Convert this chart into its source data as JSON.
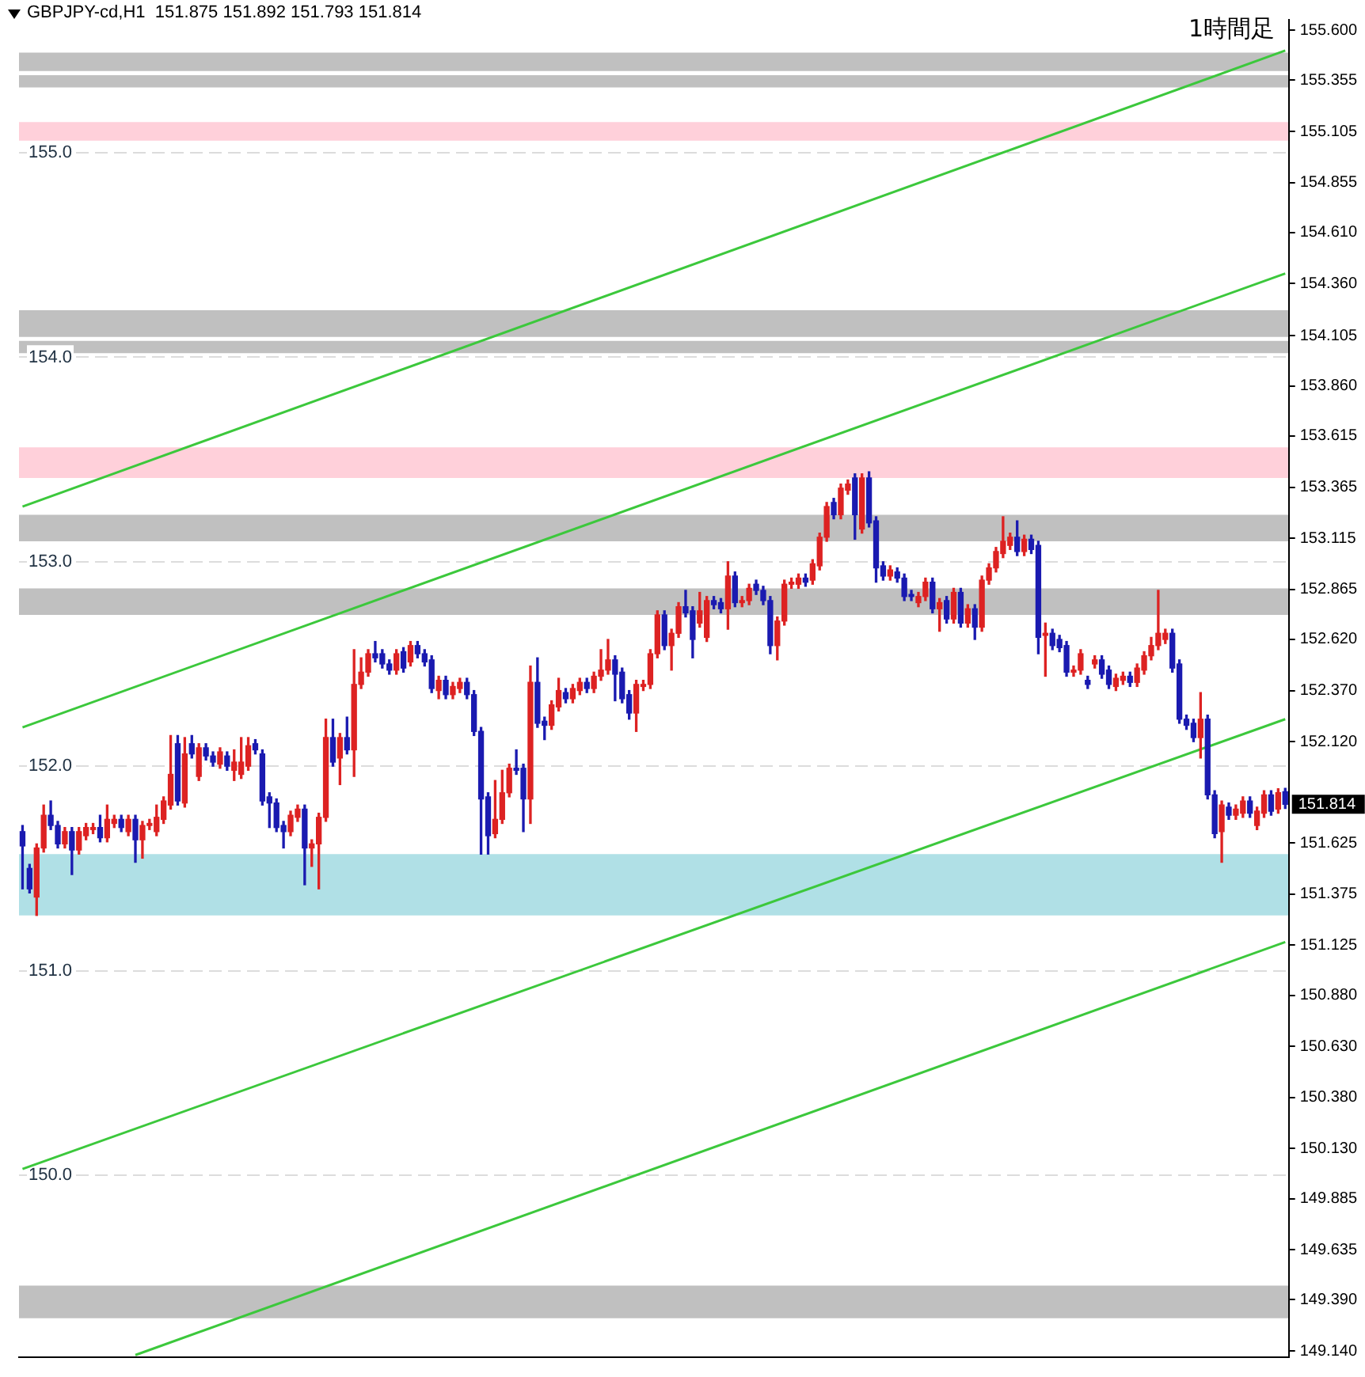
{
  "chart_data": {
    "type": "candlestick",
    "title": "GBPJPY-cd,H1  151.875 151.892 151.793 151.814",
    "subtitle": "1時間足",
    "categories": [
      null,
      null,
      null,
      null,
      null,
      null,
      null,
      null,
      null,
      null,
      null,
      null,
      null,
      null,
      null,
      null,
      null,
      null,
      null,
      null,
      null,
      null,
      null,
      null,
      null,
      null,
      null,
      null,
      null,
      null,
      null,
      null,
      null,
      null,
      null,
      null,
      null,
      null,
      null,
      null,
      null,
      null,
      null,
      null,
      null,
      null,
      null,
      null,
      null,
      null,
      null,
      null,
      null,
      null,
      null,
      null,
      null,
      null,
      null,
      null,
      null,
      null,
      null,
      null,
      null,
      null,
      null,
      null,
      null,
      null,
      null,
      null,
      null,
      null,
      null,
      null,
      null,
      null,
      null,
      null,
      null,
      null,
      null,
      null,
      null,
      null,
      null,
      null,
      null,
      null,
      null,
      null,
      null,
      null,
      null,
      null,
      null,
      null,
      null,
      null,
      null,
      null,
      null,
      null,
      null,
      null,
      null,
      null,
      null,
      null,
      null,
      null,
      null,
      null,
      null,
      null,
      null,
      null,
      null,
      null,
      null,
      null,
      null,
      null,
      null,
      null,
      null,
      null,
      null,
      null,
      null,
      null,
      null,
      null,
      null,
      null,
      null,
      null,
      null,
      null,
      null,
      null,
      null,
      null,
      null,
      null,
      null,
      null,
      null,
      null,
      null,
      null,
      null,
      null,
      null,
      null,
      null,
      null,
      null,
      null,
      null,
      null,
      null,
      null,
      null,
      null,
      null,
      null,
      null,
      null,
      null,
      null,
      null,
      null,
      null,
      null,
      null,
      null,
      null,
      null
    ],
    "ohlc": [
      [
        151.68,
        151.71,
        151.4,
        151.61
      ],
      [
        151.5,
        151.52,
        151.38,
        151.4
      ],
      [
        151.36,
        151.62,
        151.27,
        151.6
      ],
      [
        151.6,
        151.81,
        151.58,
        151.76
      ],
      [
        151.76,
        151.83,
        151.69,
        151.71
      ],
      [
        151.71,
        151.73,
        151.6,
        151.62
      ],
      [
        151.62,
        151.7,
        151.6,
        151.68
      ],
      [
        151.68,
        151.7,
        151.47,
        151.59
      ],
      [
        151.59,
        151.7,
        151.57,
        151.68
      ],
      [
        151.66,
        151.72,
        151.64,
        151.7
      ],
      [
        151.69,
        151.72,
        151.67,
        151.7
      ],
      [
        151.7,
        151.76,
        151.63,
        151.65
      ],
      [
        151.65,
        151.81,
        151.63,
        151.74
      ],
      [
        151.72,
        151.76,
        151.7,
        151.74
      ],
      [
        151.74,
        151.76,
        151.68,
        151.7
      ],
      [
        151.68,
        151.76,
        151.66,
        151.74
      ],
      [
        151.74,
        151.76,
        151.53,
        151.64
      ],
      [
        151.64,
        151.73,
        151.55,
        151.71
      ],
      [
        151.71,
        151.74,
        151.69,
        151.72
      ],
      [
        151.68,
        151.81,
        151.66,
        151.75
      ],
      [
        151.74,
        151.85,
        151.72,
        151.83
      ],
      [
        151.81,
        152.15,
        151.79,
        151.96
      ],
      [
        152.11,
        152.15,
        151.81,
        151.83
      ],
      [
        151.82,
        152.14,
        151.8,
        152.06
      ],
      [
        152.11,
        152.15,
        152.04,
        152.06
      ],
      [
        151.95,
        152.11,
        151.93,
        152.09
      ],
      [
        152.09,
        152.11,
        152.03,
        152.05
      ],
      [
        152.05,
        152.07,
        152.0,
        152.02
      ],
      [
        152.01,
        152.09,
        151.99,
        152.07
      ],
      [
        152.05,
        152.07,
        151.98,
        152.0
      ],
      [
        151.98,
        152.08,
        151.93,
        152.02
      ],
      [
        151.96,
        152.14,
        151.94,
        152.02
      ],
      [
        152.0,
        152.14,
        151.98,
        152.1
      ],
      [
        152.11,
        152.13,
        152.06,
        152.08
      ],
      [
        152.06,
        152.08,
        151.81,
        151.83
      ],
      [
        151.85,
        151.87,
        151.7,
        151.82
      ],
      [
        151.82,
        151.84,
        151.68,
        151.7
      ],
      [
        151.71,
        151.73,
        151.6,
        151.68
      ],
      [
        151.68,
        151.78,
        151.66,
        151.76
      ],
      [
        151.75,
        151.81,
        151.73,
        151.79
      ],
      [
        151.79,
        151.81,
        151.42,
        151.6
      ],
      [
        151.6,
        151.64,
        151.51,
        151.62
      ],
      [
        151.62,
        151.77,
        151.4,
        151.75
      ],
      [
        151.75,
        152.23,
        151.73,
        152.14
      ],
      [
        152.14,
        152.23,
        152.0,
        152.02
      ],
      [
        152.04,
        152.16,
        151.91,
        152.14
      ],
      [
        152.14,
        152.24,
        152.06,
        152.08
      ],
      [
        152.08,
        152.57,
        151.95,
        152.4
      ],
      [
        152.4,
        152.53,
        152.38,
        152.46
      ],
      [
        152.46,
        152.57,
        152.44,
        152.55
      ],
      [
        152.55,
        152.61,
        152.51,
        152.53
      ],
      [
        152.55,
        152.57,
        152.48,
        152.5
      ],
      [
        152.5,
        152.52,
        152.45,
        152.47
      ],
      [
        152.47,
        152.57,
        152.45,
        152.55
      ],
      [
        152.56,
        152.58,
        152.46,
        152.48
      ],
      [
        152.51,
        152.61,
        152.49,
        152.59
      ],
      [
        152.59,
        152.61,
        152.53,
        152.55
      ],
      [
        152.55,
        152.57,
        152.49,
        152.51
      ],
      [
        152.52,
        152.54,
        152.36,
        152.38
      ],
      [
        152.37,
        152.44,
        152.33,
        152.42
      ],
      [
        152.42,
        152.44,
        152.33,
        152.35
      ],
      [
        152.35,
        152.41,
        152.33,
        152.39
      ],
      [
        152.38,
        152.43,
        152.36,
        152.41
      ],
      [
        152.41,
        152.43,
        152.33,
        152.35
      ],
      [
        152.35,
        152.37,
        152.15,
        152.17
      ],
      [
        152.17,
        152.19,
        151.57,
        151.84
      ],
      [
        151.85,
        151.87,
        151.57,
        151.66
      ],
      [
        151.67,
        151.93,
        151.65,
        151.74
      ],
      [
        151.74,
        151.98,
        151.72,
        151.87
      ],
      [
        151.87,
        152.01,
        151.85,
        151.99
      ],
      [
        151.99,
        152.08,
        151.96,
        151.98
      ],
      [
        151.99,
        152.01,
        151.68,
        151.84
      ],
      [
        151.84,
        152.49,
        151.72,
        152.41
      ],
      [
        152.41,
        152.53,
        152.19,
        152.21
      ],
      [
        152.22,
        152.24,
        152.13,
        152.2
      ],
      [
        152.2,
        152.32,
        152.18,
        152.3
      ],
      [
        152.29,
        152.43,
        152.27,
        152.37
      ],
      [
        152.36,
        152.38,
        152.31,
        152.33
      ],
      [
        152.33,
        152.4,
        152.31,
        152.38
      ],
      [
        152.37,
        152.43,
        152.35,
        152.41
      ],
      [
        152.41,
        152.43,
        152.36,
        152.38
      ],
      [
        152.38,
        152.46,
        152.36,
        152.44
      ],
      [
        152.44,
        152.57,
        152.42,
        152.47
      ],
      [
        152.47,
        152.62,
        152.45,
        152.52
      ],
      [
        152.52,
        152.54,
        152.32,
        152.45
      ],
      [
        152.46,
        152.48,
        152.31,
        152.33
      ],
      [
        152.35,
        152.37,
        152.23,
        152.26
      ],
      [
        152.26,
        152.42,
        152.17,
        152.4
      ],
      [
        152.39,
        152.42,
        152.37,
        152.4
      ],
      [
        152.4,
        152.57,
        152.38,
        152.55
      ],
      [
        152.55,
        152.76,
        152.53,
        152.74
      ],
      [
        152.74,
        152.76,
        152.57,
        152.59
      ],
      [
        152.59,
        152.67,
        152.47,
        152.65
      ],
      [
        152.65,
        152.8,
        152.63,
        152.78
      ],
      [
        152.78,
        152.86,
        152.73,
        152.75
      ],
      [
        152.76,
        152.78,
        152.53,
        152.62
      ],
      [
        152.7,
        152.85,
        152.68,
        152.76
      ],
      [
        152.63,
        152.83,
        152.61,
        152.81
      ],
      [
        152.81,
        152.83,
        152.77,
        152.79
      ],
      [
        152.8,
        152.82,
        152.75,
        152.77
      ],
      [
        152.77,
        153.0,
        152.67,
        152.93
      ],
      [
        152.93,
        152.95,
        152.78,
        152.8
      ],
      [
        152.8,
        152.83,
        152.78,
        152.81
      ],
      [
        152.81,
        152.89,
        152.79,
        152.87
      ],
      [
        152.89,
        152.91,
        152.84,
        152.86
      ],
      [
        152.86,
        152.88,
        152.79,
        152.81
      ],
      [
        152.81,
        152.83,
        152.55,
        152.59
      ],
      [
        152.59,
        152.73,
        152.52,
        152.71
      ],
      [
        152.71,
        152.91,
        152.69,
        152.89
      ],
      [
        152.89,
        152.92,
        152.87,
        152.9
      ],
      [
        152.89,
        152.94,
        152.87,
        152.92
      ],
      [
        152.92,
        152.94,
        152.88,
        152.9
      ],
      [
        152.91,
        153.01,
        152.89,
        152.99
      ],
      [
        152.98,
        153.14,
        152.96,
        153.12
      ],
      [
        153.12,
        153.29,
        153.1,
        153.27
      ],
      [
        153.29,
        153.31,
        153.21,
        153.23
      ],
      [
        153.23,
        153.38,
        153.21,
        153.36
      ],
      [
        153.35,
        153.4,
        153.33,
        153.38
      ],
      [
        153.41,
        153.43,
        153.11,
        153.23
      ],
      [
        153.16,
        153.43,
        153.14,
        153.41
      ],
      [
        153.41,
        153.44,
        153.17,
        153.19
      ],
      [
        153.2,
        153.22,
        152.9,
        152.97
      ],
      [
        152.98,
        153.0,
        152.91,
        152.93
      ],
      [
        152.93,
        152.98,
        152.91,
        152.96
      ],
      [
        152.95,
        152.97,
        152.9,
        152.92
      ],
      [
        152.92,
        152.94,
        152.81,
        152.83
      ],
      [
        152.84,
        152.86,
        152.81,
        152.83
      ],
      [
        152.8,
        152.85,
        152.78,
        152.83
      ],
      [
        152.83,
        152.92,
        152.81,
        152.9
      ],
      [
        152.9,
        152.92,
        152.75,
        152.77
      ],
      [
        152.77,
        152.82,
        152.66,
        152.8
      ],
      [
        152.81,
        152.83,
        152.7,
        152.72
      ],
      [
        152.72,
        152.87,
        152.7,
        152.85
      ],
      [
        152.85,
        152.87,
        152.68,
        152.7
      ],
      [
        152.7,
        152.79,
        152.68,
        152.77
      ],
      [
        152.77,
        152.79,
        152.62,
        152.68
      ],
      [
        152.68,
        152.93,
        152.66,
        152.91
      ],
      [
        152.91,
        152.99,
        152.89,
        152.97
      ],
      [
        152.97,
        153.07,
        152.95,
        153.05
      ],
      [
        153.04,
        153.22,
        153.02,
        153.1
      ],
      [
        153.08,
        153.14,
        153.06,
        153.12
      ],
      [
        153.12,
        153.2,
        153.03,
        153.05
      ],
      [
        153.05,
        153.13,
        153.03,
        153.11
      ],
      [
        153.11,
        153.13,
        153.04,
        153.06
      ],
      [
        153.08,
        153.1,
        152.55,
        152.63
      ],
      [
        152.64,
        152.7,
        152.44,
        152.65
      ],
      [
        152.65,
        152.67,
        152.57,
        152.59
      ],
      [
        152.62,
        152.64,
        152.56,
        152.58
      ],
      [
        152.59,
        152.61,
        152.44,
        152.46
      ],
      [
        152.46,
        152.49,
        152.44,
        152.47
      ],
      [
        152.47,
        152.57,
        152.45,
        152.55
      ],
      [
        152.42,
        152.44,
        152.38,
        152.4
      ],
      [
        152.5,
        152.54,
        152.48,
        152.52
      ],
      [
        152.52,
        152.54,
        152.43,
        152.45
      ],
      [
        152.47,
        152.49,
        152.38,
        152.4
      ],
      [
        152.39,
        152.45,
        152.37,
        152.43
      ],
      [
        152.42,
        152.46,
        152.4,
        152.44
      ],
      [
        152.44,
        152.46,
        152.39,
        152.41
      ],
      [
        152.41,
        152.5,
        152.39,
        152.48
      ],
      [
        152.47,
        152.56,
        152.45,
        152.54
      ],
      [
        152.54,
        152.63,
        152.52,
        152.59
      ],
      [
        152.59,
        152.86,
        152.57,
        152.65
      ],
      [
        152.62,
        152.67,
        152.6,
        152.65
      ],
      [
        152.65,
        152.67,
        152.46,
        152.48
      ],
      [
        152.5,
        152.52,
        152.21,
        152.23
      ],
      [
        152.23,
        152.25,
        152.18,
        152.2
      ],
      [
        152.21,
        152.23,
        152.12,
        152.14
      ],
      [
        152.14,
        152.36,
        152.04,
        152.23
      ],
      [
        152.23,
        152.25,
        151.84,
        151.86
      ],
      [
        151.86,
        151.88,
        151.65,
        151.67
      ],
      [
        151.68,
        151.83,
        151.53,
        151.81
      ],
      [
        151.8,
        151.82,
        151.74,
        151.76
      ],
      [
        151.76,
        151.81,
        151.74,
        151.79
      ],
      [
        151.77,
        151.85,
        151.75,
        151.83
      ],
      [
        151.83,
        151.85,
        151.75,
        151.77
      ],
      [
        151.71,
        151.8,
        151.69,
        151.78
      ],
      [
        151.77,
        151.88,
        151.75,
        151.86
      ],
      [
        151.86,
        151.88,
        151.76,
        151.78
      ],
      [
        151.79,
        151.89,
        151.77,
        151.87
      ],
      [
        151.875,
        151.892,
        151.793,
        151.814
      ]
    ],
    "series": [
      {
        "type": "line",
        "color": "#3cc83c",
        "values": [
          153.27,
          null,
          null,
          null,
          null,
          null,
          null,
          null,
          null,
          null,
          null,
          null,
          null,
          null,
          null,
          null,
          null,
          null,
          null,
          null,
          null,
          null,
          null,
          null,
          null,
          null,
          null,
          null,
          null,
          null,
          null,
          null,
          null,
          null,
          null,
          null,
          null,
          null,
          null,
          null,
          null,
          null,
          null,
          null,
          null,
          null,
          null,
          null,
          null,
          null,
          null,
          null,
          null,
          null,
          null,
          null,
          null,
          null,
          null,
          null,
          null,
          null,
          null,
          null,
          null,
          null,
          null,
          null,
          null,
          null,
          null,
          null,
          null,
          null,
          null,
          null,
          null,
          null,
          null,
          null,
          null,
          null,
          null,
          null,
          null,
          null,
          null,
          null,
          null,
          null,
          null,
          null,
          null,
          null,
          null,
          null,
          null,
          null,
          null,
          null,
          null,
          null,
          null,
          null,
          null,
          null,
          null,
          null,
          null,
          null,
          null,
          null,
          null,
          null,
          null,
          null,
          null,
          null,
          null,
          null,
          null,
          null,
          null,
          null,
          null,
          null,
          null,
          null,
          null,
          null,
          null,
          null,
          null,
          null,
          null,
          null,
          null,
          null,
          null,
          null,
          null,
          null,
          null,
          null,
          null,
          null,
          null,
          null,
          null,
          null,
          null,
          null,
          null,
          null,
          null,
          null,
          null,
          null,
          null,
          null,
          null,
          null,
          null,
          null,
          null,
          null,
          null,
          null,
          null,
          null,
          null,
          null,
          null,
          null,
          null,
          null,
          null,
          null,
          null,
          155.5
        ]
      },
      {
        "type": "line",
        "color": "#3cc83c",
        "values": [
          152.19,
          null,
          null,
          null,
          null,
          null,
          null,
          null,
          null,
          null,
          null,
          null,
          null,
          null,
          null,
          null,
          null,
          null,
          null,
          null,
          null,
          null,
          null,
          null,
          null,
          null,
          null,
          null,
          null,
          null,
          null,
          null,
          null,
          null,
          null,
          null,
          null,
          null,
          null,
          null,
          null,
          null,
          null,
          null,
          null,
          null,
          null,
          null,
          null,
          null,
          null,
          null,
          null,
          null,
          null,
          null,
          null,
          null,
          null,
          null,
          null,
          null,
          null,
          null,
          null,
          null,
          null,
          null,
          null,
          null,
          null,
          null,
          null,
          null,
          null,
          null,
          null,
          null,
          null,
          null,
          null,
          null,
          null,
          null,
          null,
          null,
          null,
          null,
          null,
          null,
          null,
          null,
          null,
          null,
          null,
          null,
          null,
          null,
          null,
          null,
          null,
          null,
          null,
          null,
          null,
          null,
          null,
          null,
          null,
          null,
          null,
          null,
          null,
          null,
          null,
          null,
          null,
          null,
          null,
          null,
          null,
          null,
          null,
          null,
          null,
          null,
          null,
          null,
          null,
          null,
          null,
          null,
          null,
          null,
          null,
          null,
          null,
          null,
          null,
          null,
          null,
          null,
          null,
          null,
          null,
          null,
          null,
          null,
          null,
          null,
          null,
          null,
          null,
          null,
          null,
          null,
          null,
          null,
          null,
          null,
          null,
          null,
          null,
          null,
          null,
          null,
          null,
          null,
          null,
          null,
          null,
          null,
          null,
          null,
          null,
          null,
          null,
          null,
          null,
          154.41
        ]
      },
      {
        "type": "line",
        "color": "#3cc83c",
        "values": [
          150.03,
          null,
          null,
          null,
          null,
          null,
          null,
          null,
          null,
          null,
          null,
          null,
          null,
          null,
          null,
          null,
          null,
          null,
          null,
          null,
          null,
          null,
          null,
          null,
          null,
          null,
          null,
          null,
          null,
          null,
          null,
          null,
          null,
          null,
          null,
          null,
          null,
          null,
          null,
          null,
          null,
          null,
          null,
          null,
          null,
          null,
          null,
          null,
          null,
          null,
          null,
          null,
          null,
          null,
          null,
          null,
          null,
          null,
          null,
          null,
          null,
          null,
          null,
          null,
          null,
          null,
          null,
          null,
          null,
          null,
          null,
          null,
          null,
          null,
          null,
          null,
          null,
          null,
          null,
          null,
          null,
          null,
          null,
          null,
          null,
          null,
          null,
          null,
          null,
          null,
          null,
          null,
          null,
          null,
          null,
          null,
          null,
          null,
          null,
          null,
          null,
          null,
          null,
          null,
          null,
          null,
          null,
          null,
          null,
          null,
          null,
          null,
          null,
          null,
          null,
          null,
          null,
          null,
          null,
          null,
          null,
          null,
          null,
          null,
          null,
          null,
          null,
          null,
          null,
          null,
          null,
          null,
          null,
          null,
          null,
          null,
          null,
          null,
          null,
          null,
          null,
          null,
          null,
          null,
          null,
          null,
          null,
          null,
          null,
          null,
          null,
          null,
          null,
          null,
          null,
          null,
          null,
          null,
          null,
          null,
          null,
          null,
          null,
          null,
          null,
          null,
          null,
          null,
          null,
          null,
          null,
          null,
          null,
          null,
          null,
          null,
          null,
          null,
          null,
          152.23
        ]
      },
      {
        "type": "line",
        "color": "#3cc83c",
        "values": [
          null,
          null,
          null,
          null,
          null,
          null,
          null,
          null,
          null,
          null,
          null,
          null,
          null,
          null,
          null,
          null,
          149.12,
          null,
          null,
          null,
          null,
          null,
          null,
          null,
          null,
          null,
          null,
          null,
          null,
          null,
          null,
          null,
          null,
          null,
          null,
          null,
          null,
          null,
          null,
          null,
          null,
          null,
          null,
          null,
          null,
          null,
          null,
          null,
          null,
          null,
          null,
          null,
          null,
          null,
          null,
          null,
          null,
          null,
          null,
          null,
          null,
          null,
          null,
          null,
          null,
          null,
          null,
          null,
          null,
          null,
          null,
          null,
          null,
          null,
          null,
          null,
          null,
          null,
          null,
          null,
          null,
          null,
          null,
          null,
          null,
          null,
          null,
          null,
          null,
          null,
          null,
          null,
          null,
          null,
          null,
          null,
          null,
          null,
          null,
          null,
          null,
          null,
          null,
          null,
          null,
          null,
          null,
          null,
          null,
          null,
          null,
          null,
          null,
          null,
          null,
          null,
          null,
          null,
          null,
          null,
          null,
          null,
          null,
          null,
          null,
          null,
          null,
          null,
          null,
          null,
          null,
          null,
          null,
          null,
          null,
          null,
          null,
          null,
          null,
          null,
          null,
          null,
          null,
          null,
          null,
          null,
          null,
          null,
          null,
          null,
          null,
          null,
          null,
          null,
          null,
          null,
          null,
          null,
          null,
          null,
          null,
          null,
          null,
          null,
          null,
          null,
          null,
          null,
          null,
          null,
          null,
          null,
          null,
          null,
          null,
          null,
          null,
          null,
          null,
          151.14
        ]
      }
    ],
    "bands": [
      {
        "axis": "y",
        "from": 155.4,
        "to": 155.49,
        "color": "#c0c0c0"
      },
      {
        "axis": "y",
        "from": 155.32,
        "to": 155.38,
        "color": "#c0c0c0"
      },
      {
        "axis": "y",
        "from": 155.06,
        "to": 155.15,
        "color": "#ffd0da"
      },
      {
        "axis": "y",
        "from": 154.1,
        "to": 154.23,
        "color": "#c0c0c0"
      },
      {
        "axis": "y",
        "from": 154.02,
        "to": 154.08,
        "color": "#c0c0c0"
      },
      {
        "axis": "y",
        "from": 153.41,
        "to": 153.56,
        "color": "#ffd0da"
      },
      {
        "axis": "y",
        "from": 153.1,
        "to": 153.23,
        "color": "#c0c0c0"
      },
      {
        "axis": "y",
        "from": 152.74,
        "to": 152.87,
        "color": "#c0c0c0"
      },
      {
        "axis": "y",
        "from": 151.27,
        "to": 151.57,
        "color": "#b0e0e6"
      },
      {
        "axis": "y",
        "from": 149.3,
        "to": 149.46,
        "color": "#c0c0c0"
      }
    ],
    "annotations": [
      "151.814"
    ],
    "ylim": [
      149.11,
      155.65
    ],
    "yticks": [
      {
        "value": 150,
        "label": "150.0"
      },
      {
        "value": 151,
        "label": "151.0"
      },
      {
        "value": 152,
        "label": "152.0"
      },
      {
        "value": 153,
        "label": "153.0"
      },
      {
        "value": 154,
        "label": "154.0"
      },
      {
        "value": 155,
        "label": "155.0"
      }
    ],
    "y2lim": [
      149.11,
      155.65
    ],
    "y2ticks": [
      {
        "value": 155.6,
        "label": "155.600"
      },
      {
        "value": 155.355,
        "label": "155.355"
      },
      {
        "value": 155.105,
        "label": "155.105"
      },
      {
        "value": 154.855,
        "label": "154.855"
      },
      {
        "value": 154.61,
        "label": "154.610"
      },
      {
        "value": 154.36,
        "label": "154.360"
      },
      {
        "value": 154.105,
        "label": "154.105"
      },
      {
        "value": 153.86,
        "label": "153.860"
      },
      {
        "value": 153.615,
        "label": "153.615"
      },
      {
        "value": 153.365,
        "label": "153.365"
      },
      {
        "value": 153.115,
        "label": "153.115"
      },
      {
        "value": 152.865,
        "label": "152.865"
      },
      {
        "value": 152.62,
        "label": "152.620"
      },
      {
        "value": 152.37,
        "label": "152.370"
      },
      {
        "value": 152.12,
        "label": "152.120"
      },
      {
        "value": 151.625,
        "label": "151.625"
      },
      {
        "value": 151.375,
        "label": "151.375"
      },
      {
        "value": 151.125,
        "label": "151.125"
      },
      {
        "value": 150.88,
        "label": "150.880"
      },
      {
        "value": 150.63,
        "label": "150.630"
      },
      {
        "value": 150.38,
        "label": "150.380"
      },
      {
        "value": 150.13,
        "label": "150.130"
      },
      {
        "value": 149.885,
        "label": "149.885"
      },
      {
        "value": 149.635,
        "label": "149.635"
      },
      {
        "value": 149.39,
        "label": "149.390"
      },
      {
        "value": 149.14,
        "label": "149.140"
      }
    ],
    "grid": "y",
    "legend": false
  }
}
